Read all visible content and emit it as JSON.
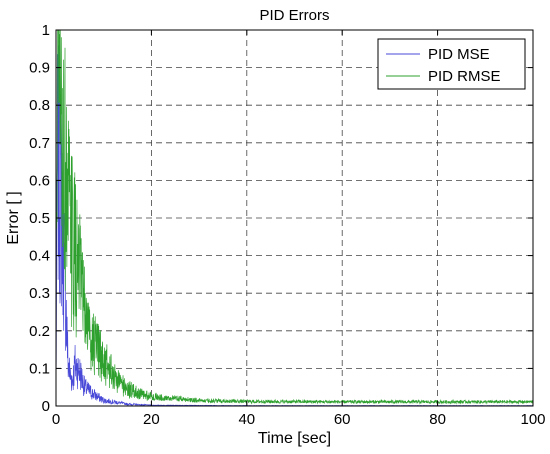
{
  "chart_data": {
    "type": "line",
    "title": "PID Errors",
    "xlabel": "Time [sec]",
    "ylabel": "Error [ ]",
    "xlim": [
      0,
      100
    ],
    "ylim": [
      0,
      1
    ],
    "xticks": [
      0,
      20,
      40,
      60,
      80,
      100
    ],
    "yticks": [
      0,
      0.1,
      0.2,
      0.3,
      0.4,
      0.5,
      0.6,
      0.7,
      0.8,
      0.9,
      1
    ],
    "xtick_labels": [
      "0",
      "20",
      "40",
      "60",
      "80",
      "100"
    ],
    "ytick_labels": [
      "0",
      "0.1",
      "0.2",
      "0.3",
      "0.4",
      "0.5",
      "0.6",
      "0.7",
      "0.8",
      "0.9",
      "1"
    ],
    "grid": true,
    "legend_position": "top-right",
    "series": [
      {
        "name": "PID MSE",
        "color": "#4a4ad8",
        "x": [
          0,
          0.3,
          0.6,
          1,
          1.5,
          2,
          2.5,
          3,
          3.5,
          4,
          5,
          6,
          8,
          10,
          15,
          20,
          40,
          60,
          80,
          100
        ],
        "y": [
          0.05,
          0.66,
          0.6,
          0.54,
          0.45,
          0.3,
          0.12,
          0.08,
          0.07,
          0.11,
          0.09,
          0.05,
          0.03,
          0.015,
          0.005,
          0.002,
          0.001,
          0.001,
          0.001,
          0.001
        ]
      },
      {
        "name": "PID RMSE",
        "color": "#2ea02e",
        "x": [
          0,
          0.3,
          0.6,
          1,
          2,
          3,
          4,
          5,
          6,
          7,
          8,
          10,
          12,
          15,
          18,
          20,
          25,
          30,
          40,
          60,
          80,
          100
        ],
        "y": [
          0.2,
          0.98,
          0.85,
          0.73,
          0.62,
          0.46,
          0.4,
          0.33,
          0.25,
          0.2,
          0.16,
          0.12,
          0.08,
          0.045,
          0.03,
          0.025,
          0.02,
          0.015,
          0.012,
          0.011,
          0.011,
          0.011
        ]
      }
    ]
  }
}
